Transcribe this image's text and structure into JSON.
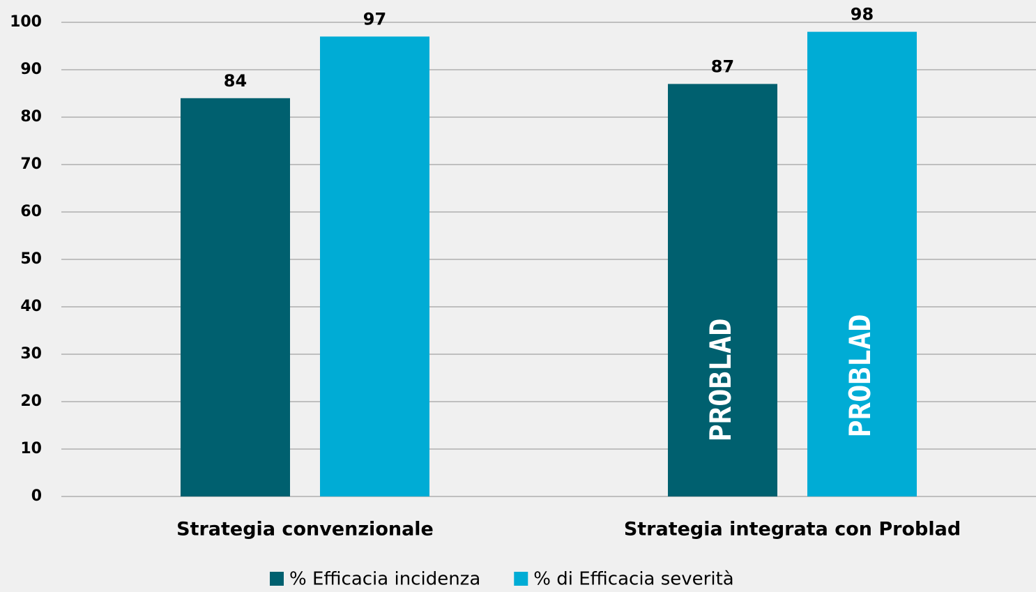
{
  "chart_data": {
    "type": "bar",
    "categories": [
      "Strategia convenzionale",
      "Strategia integrata con Problad"
    ],
    "series": [
      {
        "name": "% Efficacia incidenza",
        "color": "#00606f",
        "values": [
          84,
          87
        ]
      },
      {
        "name": "% di Efficacia severità",
        "color": "#00acd5",
        "values": [
          97,
          98
        ]
      }
    ],
    "annotations": [
      "PROBLAD",
      "PROBLAD"
    ],
    "ylim": [
      0,
      100
    ],
    "yticks": [
      0,
      10,
      20,
      30,
      40,
      50,
      60,
      70,
      80,
      90,
      100
    ],
    "grid": true,
    "legend": "bottom"
  }
}
